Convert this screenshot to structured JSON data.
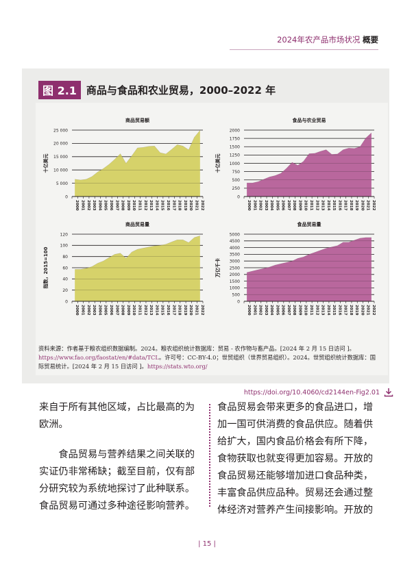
{
  "header": {
    "report": "2024年农产品市场状况",
    "section": "概要"
  },
  "figure": {
    "label": "图 2.1",
    "title": "商品与食品和农业贸易，2000–2022 年",
    "source_parts": [
      "资料来源：作者基于粮农组织数据编制。2024。粮农组织统计数据库：贸易 - 农作物与畜产品。[2024 年 2 月 15 日访问 ]。",
      "https://www.fao.org/faostat/en/#data/TCL",
      "。许可号：CC-BY-4.0；世贸组织（世界贸易组织）。2024。世贸组织统计数据库：国际贸易统计。[2024 年 2 月 15 日访问 ]。",
      "https://stats.wto.org/"
    ],
    "doi": "https://doi.org/10.4060/cd2144en-Fig2.01"
  },
  "chart_data": [
    {
      "type": "area",
      "title": "商品贸易额",
      "ylabel": "十亿美元",
      "ylim": [
        0,
        25000
      ],
      "yticks": [
        "0",
        "5 000",
        "10 000",
        "15 000",
        "20 000",
        "25 000"
      ],
      "color": "#d6d26a",
      "x": [
        "2000",
        "2001",
        "2002",
        "2003",
        "2004",
        "2005",
        "2006",
        "2007",
        "2008",
        "2009",
        "2010",
        "2011",
        "2012",
        "2013",
        "2014",
        "2015",
        "2016",
        "2017",
        "2018",
        "2019",
        "2020",
        "2021",
        "2022"
      ],
      "values": [
        6500,
        6200,
        6500,
        7500,
        9200,
        10500,
        12100,
        14000,
        16100,
        12500,
        15300,
        18300,
        18500,
        18900,
        19000,
        16500,
        16000,
        17700,
        19500,
        19000,
        17600,
        22300,
        24900
      ]
    },
    {
      "type": "area",
      "title": "食品与农业贸易",
      "ylabel": "十亿美元",
      "ylim": [
        0,
        2000
      ],
      "yticks": [
        "0",
        "250",
        "500",
        "750",
        "1000",
        "1250",
        "1500",
        "1750",
        "2000"
      ],
      "color": "#b9679d",
      "x": [
        "2000",
        "2001",
        "2002",
        "2003",
        "2004",
        "2005",
        "2006",
        "2007",
        "2008",
        "2009",
        "2010",
        "2011",
        "2012",
        "2013",
        "2014",
        "2015",
        "2016",
        "2017",
        "2018",
        "2019",
        "2020",
        "2021",
        "2022"
      ],
      "values": [
        410,
        410,
        450,
        520,
        590,
        630,
        700,
        850,
        1030,
        940,
        1060,
        1290,
        1300,
        1360,
        1410,
        1270,
        1280,
        1410,
        1460,
        1450,
        1500,
        1760,
        1920
      ]
    },
    {
      "type": "area",
      "title": "商品贸易量",
      "ylabel": "指数，2015=100",
      "ylim": [
        0,
        120
      ],
      "yticks": [
        "0",
        "20",
        "40",
        "60",
        "80",
        "100",
        "120"
      ],
      "color": "#d6d26a",
      "x": [
        "2000",
        "2001",
        "2002",
        "2003",
        "2004",
        "2005",
        "2006",
        "2007",
        "2008",
        "2009",
        "2010",
        "2011",
        "2012",
        "2013",
        "2014",
        "2015",
        "2016",
        "2017",
        "2018",
        "2019",
        "2020",
        "2021",
        "2022"
      ],
      "values": [
        57,
        57,
        59,
        62,
        68,
        72,
        78,
        84,
        86,
        77,
        88,
        93,
        95,
        97,
        99,
        100,
        102,
        106,
        110,
        110,
        105,
        114,
        117
      ]
    },
    {
      "type": "area",
      "title": "食品贸易量",
      "ylabel": "万亿千卡",
      "ylim": [
        0,
        5000
      ],
      "yticks": [
        "0",
        "500",
        "1000",
        "1500",
        "2000",
        "2500",
        "3000",
        "3500",
        "4000",
        "4500",
        "5000"
      ],
      "color": "#b9679d",
      "x": [
        "2000",
        "2001",
        "2002",
        "2003",
        "2004",
        "2005",
        "2006",
        "2007",
        "2008",
        "2009",
        "2010",
        "2011",
        "2012",
        "2013",
        "2014",
        "2015",
        "2016",
        "2017",
        "2018",
        "2019",
        "2020",
        "2021",
        "2022"
      ],
      "values": [
        2150,
        2250,
        2350,
        2450,
        2550,
        2700,
        2800,
        2900,
        3000,
        3200,
        3300,
        3500,
        3650,
        3800,
        3950,
        4050,
        4150,
        4400,
        4400,
        4550,
        4700,
        4750,
        4750
      ]
    }
  ],
  "body": {
    "left_p1": "来自于所有其他区域，占比最高的为欧洲。",
    "left_p2": "食品贸易与营养结果之间关联的实证仍非常稀缺；截至目前，仅有部分研究较为系统地探讨了此种联系。食品贸易可通过多种途径影响营养。",
    "right_p1": "食品贸易会带来更多的食品进口，增加一国可供消费的食品供应。随着供给扩大，国内食品价格会有所下降，食物获取也就变得更加容易。开放的食品贸易还能够增加进口食品种类，丰富食品供应品种。贸易还会通过整体经济对营养产生间接影响。开放的"
  },
  "footer": {
    "page_number": "| 15 |"
  }
}
